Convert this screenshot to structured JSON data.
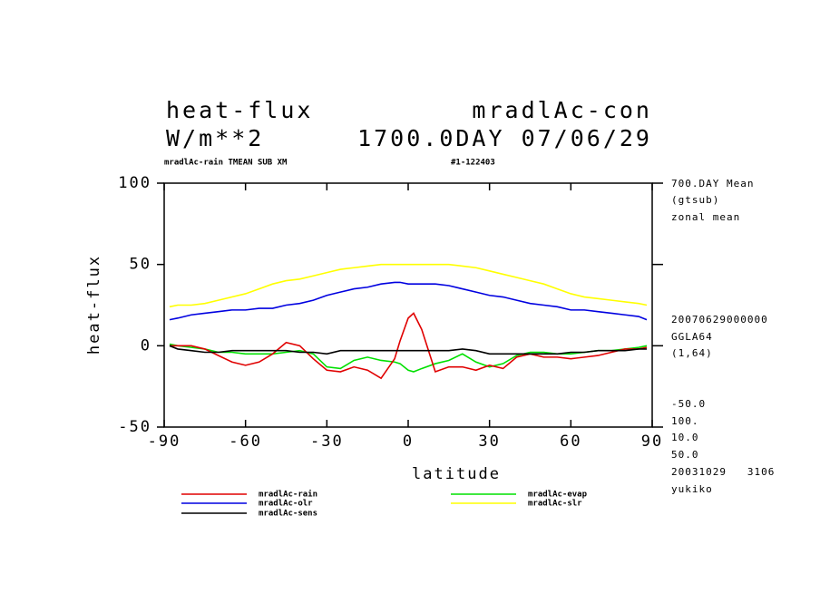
{
  "chart_data": {
    "type": "line",
    "title": "heat-flux",
    "title_right": "mradlAc-con",
    "units": "W/m**2",
    "time": "1700.0DAY 07/06/29",
    "subtitle": "mradlAc-rain TMEAN SUB XM",
    "subtitle_right": "#1-122403",
    "x_label": "latitude",
    "y_label": "heat-flux",
    "annotations": [
      "700.DAY Mean",
      "(gtsub)",
      "zonal mean",
      "20070629000000",
      "GGLA64",
      "(1,64)",
      "-50.0",
      "100.",
      "10.0",
      "50.0",
      "20031029   3106",
      "yukiko"
    ],
    "xlim": [
      -90,
      90
    ],
    "xticks": [
      -90,
      -60,
      -30,
      0,
      30,
      60,
      90
    ],
    "ylim": [
      -50,
      100
    ],
    "yticks": [
      -50,
      0,
      50,
      100
    ],
    "x": [
      -88,
      -85,
      -80,
      -75,
      -70,
      -65,
      -60,
      -55,
      -50,
      -45,
      -40,
      -35,
      -30,
      -25,
      -20,
      -15,
      -10,
      -5,
      -3,
      0,
      2,
      5,
      10,
      15,
      20,
      25,
      30,
      35,
      40,
      45,
      50,
      55,
      60,
      65,
      70,
      75,
      80,
      85,
      88
    ],
    "series": [
      {
        "name": "mradlAc-rain",
        "color": "#e00000",
        "values": [
          0,
          0,
          0,
          -2,
          -6,
          -10,
          -12,
          -10,
          -5,
          2,
          0,
          -8,
          -15,
          -16,
          -13,
          -15,
          -20,
          -8,
          3,
          17,
          20,
          10,
          -16,
          -13,
          -13,
          -15,
          -12,
          -14,
          -7,
          -5,
          -7,
          -7,
          -8,
          -7,
          -6,
          -4,
          -2,
          -2,
          -1
        ]
      },
      {
        "name": "mradlAc-olr",
        "color": "#0000e0",
        "values": [
          16,
          17,
          19,
          20,
          21,
          22,
          22,
          23,
          23,
          25,
          26,
          28,
          31,
          33,
          35,
          36,
          38,
          39,
          39,
          38,
          38,
          38,
          38,
          37,
          35,
          33,
          31,
          30,
          28,
          26,
          25,
          24,
          22,
          22,
          21,
          20,
          19,
          18,
          16
        ]
      },
      {
        "name": "mradlAc-sens",
        "color": "#000000",
        "values": [
          0,
          -2,
          -3,
          -4,
          -4,
          -3,
          -3,
          -3,
          -3,
          -3,
          -4,
          -4,
          -5,
          -3,
          -3,
          -3,
          -3,
          -3,
          -3,
          -3,
          -3,
          -3,
          -3,
          -3,
          -2,
          -3,
          -5,
          -5,
          -5,
          -5,
          -5,
          -5,
          -4,
          -4,
          -3,
          -3,
          -3,
          -2,
          -2
        ]
      },
      {
        "name": "mradlAc-evap",
        "color": "#00e000",
        "values": [
          1,
          0,
          -1,
          -2,
          -4,
          -4,
          -5,
          -5,
          -5,
          -4,
          -3,
          -5,
          -13,
          -14,
          -9,
          -7,
          -9,
          -10,
          -11,
          -15,
          -16,
          -14,
          -11,
          -9,
          -5,
          -10,
          -13,
          -11,
          -6,
          -4,
          -4,
          -5,
          -5,
          -4,
          -3,
          -3,
          -2,
          -1,
          0
        ]
      },
      {
        "name": "mradlAc-slr",
        "color": "#ffff00",
        "values": [
          24,
          25,
          25,
          26,
          28,
          30,
          32,
          35,
          38,
          40,
          41,
          43,
          45,
          47,
          48,
          49,
          50,
          50,
          50,
          50,
          50,
          50,
          50,
          50,
          49,
          48,
          46,
          44,
          42,
          40,
          38,
          35,
          32,
          30,
          29,
          28,
          27,
          26,
          25
        ]
      }
    ]
  }
}
